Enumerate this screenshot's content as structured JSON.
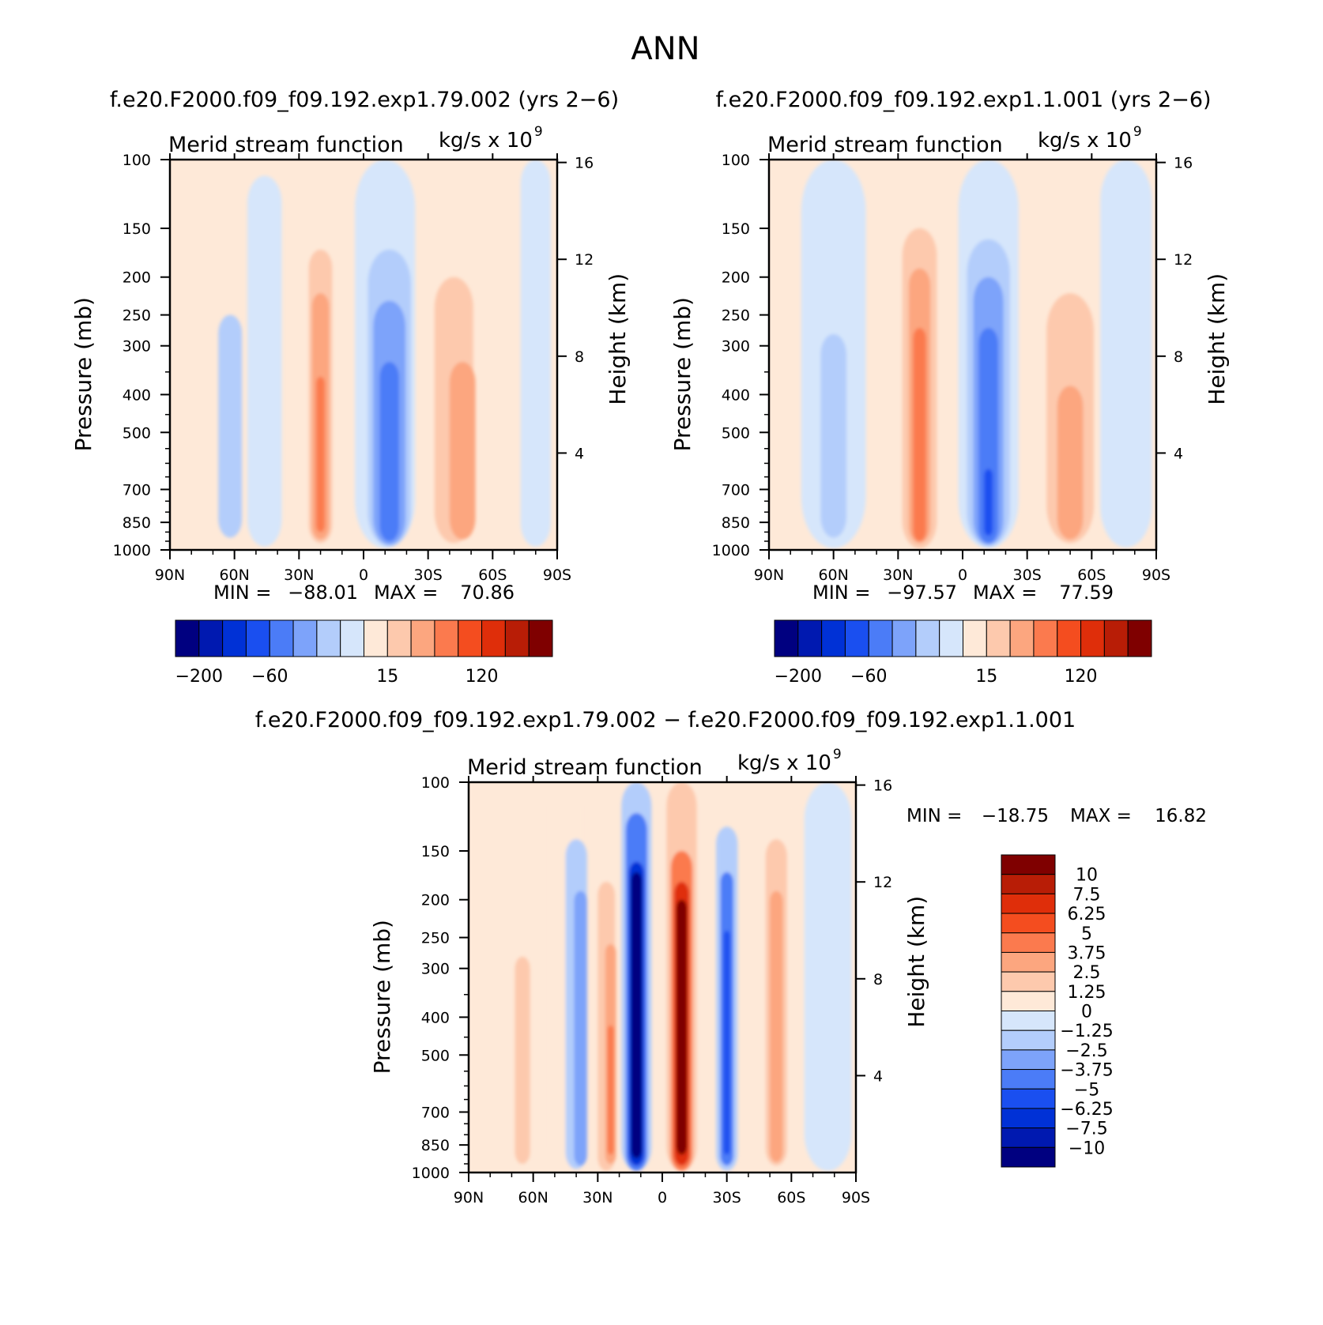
{
  "figure_title": "ANN",
  "colors": {
    "scale": [
      "#000080",
      "#0019b0",
      "#0031d6",
      "#1a4ff0",
      "#4b7cf7",
      "#7da3fa",
      "#b3cdfb",
      "#d6e6fb",
      "#fee9d8",
      "#fdc9ad",
      "#fca67f",
      "#fb7a4e",
      "#f44d1f",
      "#df2e0a",
      "#b81d06",
      "#7f0000"
    ]
  },
  "chart_data": [
    {
      "id": "panel1",
      "type": "heatmap",
      "case_title": "f.e20.F2000.f09_f09.192.exp1.79.002 (yrs 2-6)",
      "title_left": "Merid stream function",
      "units": "kg/s x 10",
      "units_exp": "9",
      "ylabel": "Pressure (mb)",
      "y2label": "Height (km)",
      "yticks": [
        "100",
        "150",
        "200",
        "250",
        "300",
        "400",
        "500",
        "700",
        "850",
        "1000"
      ],
      "y2ticks": [
        "16",
        "12",
        "8",
        "4"
      ],
      "xticks": [
        "90N",
        "60N",
        "30N",
        "0",
        "30S",
        "60S",
        "90S"
      ],
      "min_label": "MIN =",
      "min_value": "-88.01",
      "max_label": "MAX =",
      "max_value": "70.86",
      "colorbar_labels": [
        "-200",
        "-60",
        "15",
        "120"
      ],
      "cells": [
        {
          "lat": -67,
          "p": 500,
          "level": 6
        },
        {
          "lat": -52,
          "p": 500,
          "level": 6
        },
        {
          "lat": -16,
          "p": 500,
          "level": 11
        },
        {
          "lat": 10,
          "p": 500,
          "level": 3
        },
        {
          "lat": 45,
          "p": 500,
          "level": 10
        }
      ]
    },
    {
      "id": "panel2",
      "type": "heatmap",
      "case_title": "f.e20.F2000.f09_f09.192.exp1.1.001 (yrs 2-6)",
      "title_left": "Merid stream function",
      "units": "kg/s x 10",
      "units_exp": "9",
      "ylabel": "Pressure (mb)",
      "y2label": "Height (km)",
      "yticks": [
        "100",
        "150",
        "200",
        "250",
        "300",
        "400",
        "500",
        "700",
        "850",
        "1000"
      ],
      "y2ticks": [
        "16",
        "12",
        "8",
        "4"
      ],
      "xticks": [
        "90N",
        "60N",
        "30N",
        "0",
        "30S",
        "60S",
        "90S"
      ],
      "min_label": "MIN =",
      "min_value": "-97.57",
      "max_label": "MAX =",
      "max_value": "77.59",
      "colorbar_labels": [
        "-200",
        "-60",
        "15",
        "120"
      ]
    },
    {
      "id": "panel3",
      "type": "heatmap",
      "case_title": "f.e20.F2000.f09_f09.192.exp1.79.002 - f.e20.F2000.f09_f09.192.exp1.1.001",
      "title_left": "Merid stream function",
      "units": "kg/s x 10",
      "units_exp": "9",
      "ylabel": "Pressure (mb)",
      "y2label": "Height (km)",
      "yticks": [
        "100",
        "150",
        "200",
        "250",
        "300",
        "400",
        "500",
        "700",
        "850",
        "1000"
      ],
      "y2ticks": [
        "16",
        "12",
        "8",
        "4"
      ],
      "xticks": [
        "90N",
        "60N",
        "30N",
        "0",
        "30S",
        "60S",
        "90S"
      ],
      "min_label": "MIN =",
      "min_value": "-18.75",
      "max_label": "MAX =",
      "max_value": "16.82",
      "colorbar_labels": [
        "10",
        "7.5",
        "6.25",
        "5",
        "3.75",
        "2.5",
        "1.25",
        "0",
        "-1.25",
        "-2.5",
        "-3.75",
        "-5",
        "-6.25",
        "-7.5",
        "-10"
      ]
    }
  ]
}
